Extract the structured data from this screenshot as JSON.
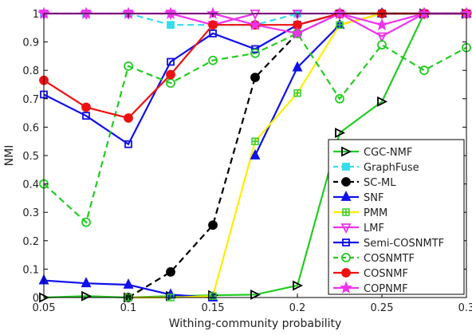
{
  "chart_data": {
    "type": "line",
    "xlabel": "Withing-community probability",
    "ylabel": "NMI",
    "xlim": [
      0.05,
      0.3
    ],
    "ylim": [
      0,
      1
    ],
    "x": [
      0.05,
      0.075,
      0.1,
      0.125,
      0.15,
      0.175,
      0.2,
      0.225,
      0.25,
      0.275,
      0.3
    ],
    "xticks": [
      0.05,
      0.1,
      0.15,
      0.2,
      0.25,
      0.3
    ],
    "xtick_labels": [
      "0.05",
      "0.1",
      "0.15",
      "0.2",
      "0.25",
      "0.3"
    ],
    "yticks": [
      0,
      0.1,
      0.2,
      0.3,
      0.4,
      0.5,
      0.6,
      0.7,
      0.8,
      0.9,
      1
    ],
    "ytick_labels": [
      "0",
      "0.1",
      "0.2",
      "0.3",
      "0.4",
      "0.5",
      "0.6",
      "0.7",
      "0.8",
      "0.9",
      "1"
    ],
    "grid": false,
    "legend_position": "bottom-right",
    "series": [
      {
        "name": "CGC-NMF",
        "color": "#22cc22",
        "dash": "solid",
        "marker": "triangle-right",
        "values": [
          0.0,
          0.005,
          0.0,
          0.005,
          0.008,
          0.01,
          0.042,
          0.58,
          0.69,
          1.0,
          1.0
        ]
      },
      {
        "name": "GraphFuse",
        "color": "#33ddee",
        "dash": "dashed",
        "marker": "square-filled",
        "values": [
          1.0,
          1.0,
          1.0,
          0.96,
          0.96,
          0.96,
          1.0,
          1.0,
          1.0,
          1.0,
          1.0
        ]
      },
      {
        "name": "SC-ML",
        "color": "#000000",
        "dash": "dashed",
        "marker": "circle-filled",
        "values": [
          null,
          null,
          0.0,
          0.09,
          0.255,
          0.775,
          0.93,
          1.0,
          1.0,
          1.0,
          1.0
        ]
      },
      {
        "name": "SNF",
        "color": "#1010ee",
        "dash": "solid",
        "marker": "triangle-up-filled",
        "values": [
          0.06,
          0.05,
          0.045,
          0.01,
          0.0,
          null,
          null,
          null,
          null,
          null,
          null
        ]
      },
      {
        "name": "SNF",
        "color": "#1010ee",
        "dash": "solid",
        "marker": "triangle-up-filled",
        "values": [
          null,
          null,
          null,
          null,
          null,
          0.5,
          0.81,
          0.96,
          1.0,
          1.0,
          1.0
        ]
      },
      {
        "name": "PMM",
        "color": "#ffee00",
        "dash": "solid",
        "marker": "plus-square",
        "values": [
          null,
          null,
          0.0,
          0.0,
          0.005,
          0.55,
          0.72,
          0.96,
          1.0,
          1.0,
          1.0
        ]
      },
      {
        "name": "LMF",
        "color": "#ee33ee",
        "dash": "solid",
        "marker": "triangle-down",
        "values": [
          1.0,
          1.0,
          1.0,
          1.0,
          0.96,
          1.0,
          1.0,
          1.0,
          0.92,
          1.0,
          1.0
        ]
      },
      {
        "name": "Semi-COSNMTF",
        "color": "#1010ee",
        "dash": "solid",
        "marker": "square",
        "values": [
          0.715,
          0.64,
          0.54,
          0.83,
          0.93,
          0.875,
          0.96,
          1.0,
          1.0,
          1.0,
          1.0
        ]
      },
      {
        "name": "COSNMTF",
        "color": "#22cc22",
        "dash": "dashed",
        "marker": "circle",
        "values": [
          0.4,
          0.265,
          0.815,
          0.755,
          0.835,
          0.86,
          0.93,
          0.7,
          0.89,
          0.8,
          0.88
        ]
      },
      {
        "name": "COSNMF",
        "color": "#ee1111",
        "dash": "solid",
        "marker": "circle-filled",
        "values": [
          0.765,
          0.67,
          0.632,
          0.785,
          0.96,
          0.96,
          0.96,
          1.0,
          1.0,
          1.0,
          1.0
        ]
      },
      {
        "name": "COPNMF",
        "color": "#ee33ee",
        "dash": "solid",
        "marker": "star",
        "values": [
          1.0,
          1.0,
          1.0,
          1.0,
          1.0,
          0.96,
          0.93,
          1.0,
          0.96,
          1.0,
          1.0
        ]
      }
    ],
    "legend": [
      {
        "name": "CGC-NMF",
        "color": "#22cc22",
        "dash": "solid",
        "marker": "triangle-right"
      },
      {
        "name": "GraphFuse",
        "color": "#33ddee",
        "dash": "dashed",
        "marker": "square-filled"
      },
      {
        "name": "SC-ML",
        "color": "#000000",
        "dash": "dashed",
        "marker": "circle-filled"
      },
      {
        "name": "SNF",
        "color": "#1010ee",
        "dash": "solid",
        "marker": "triangle-up-filled"
      },
      {
        "name": "PMM",
        "color": "#ffee00",
        "dash": "solid",
        "marker": "plus-square"
      },
      {
        "name": "LMF",
        "color": "#ee33ee",
        "dash": "solid",
        "marker": "triangle-down"
      },
      {
        "name": "Semi-COSNMTF",
        "color": "#1010ee",
        "dash": "solid",
        "marker": "square"
      },
      {
        "name": "COSNMTF",
        "color": "#22cc22",
        "dash": "dashed",
        "marker": "circle"
      },
      {
        "name": "COSNMF",
        "color": "#ee1111",
        "dash": "solid",
        "marker": "circle-filled"
      },
      {
        "name": "COPNMF",
        "color": "#ee33ee",
        "dash": "solid",
        "marker": "star"
      }
    ]
  }
}
